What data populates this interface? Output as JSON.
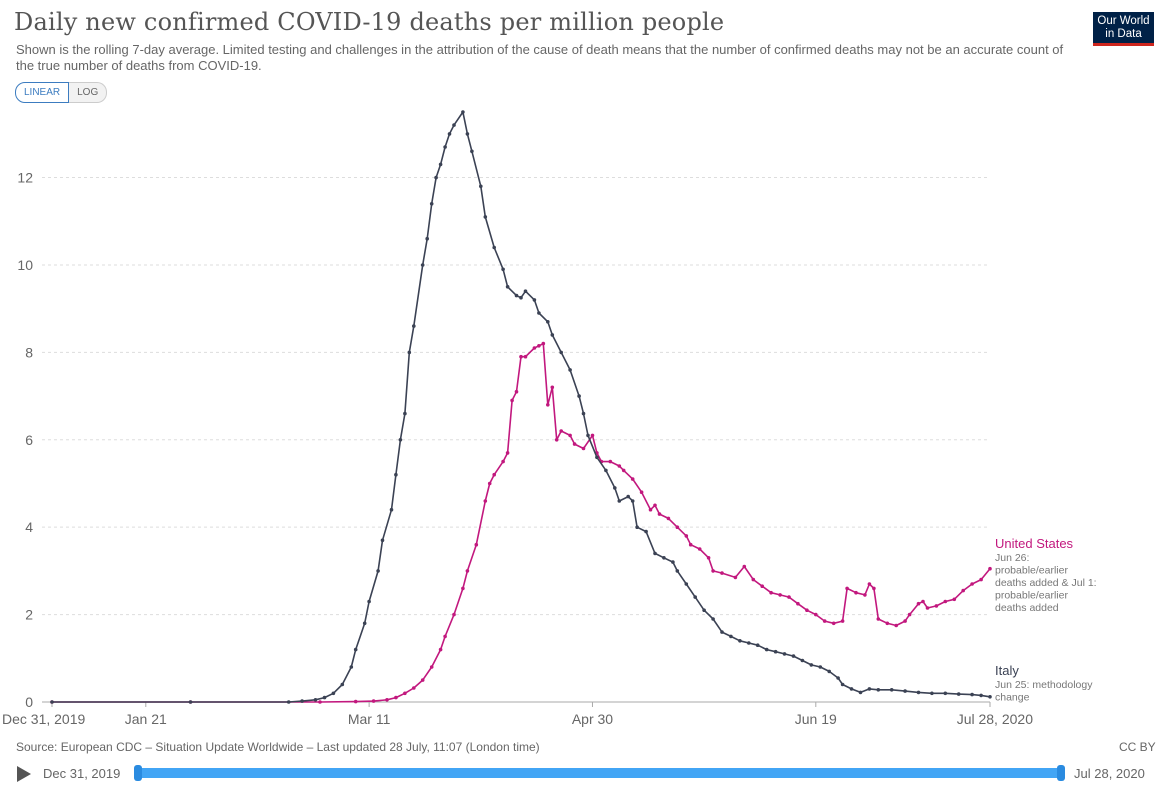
{
  "header": {
    "title": "Daily new confirmed COVID-19 deaths per million people",
    "subtitle": "Shown is the rolling 7-day average. Limited testing and challenges in the attribution of the cause of death means that the number of confirmed deaths may not be an accurate count of the true number of deaths from COVID-19.",
    "logo_line1": "Our World",
    "logo_line2": "in Data"
  },
  "controls": {
    "linear_label": "LINEAR",
    "log_label": "LOG",
    "active": "linear"
  },
  "colors": {
    "united_states": "#c2187e",
    "italy": "#3b4254",
    "grid": "#dddddd",
    "axis": "#aaaaaa"
  },
  "footer": {
    "source": "Source: European CDC – Situation Update Worldwide – Last updated 28 July, 11:07 (London time)",
    "license": "CC BY"
  },
  "timeline": {
    "start_label": "Dec 31, 2019",
    "end_label": "Jul 28, 2020"
  },
  "chart_data": {
    "type": "line",
    "title": "Daily new confirmed COVID-19 deaths per million people",
    "xlabel": "",
    "ylabel": "",
    "x_range": [
      "2019-12-31",
      "2020-07-28"
    ],
    "ylim": [
      0,
      13.5
    ],
    "y_ticks": [
      0,
      2,
      4,
      6,
      8,
      10,
      12
    ],
    "x_ticks": [
      {
        "date": "2019-12-31",
        "label": "Dec 31, 2019"
      },
      {
        "date": "2020-01-21",
        "label": "Jan 21"
      },
      {
        "date": "2020-03-11",
        "label": "Mar 11"
      },
      {
        "date": "2020-04-30",
        "label": "Apr 30"
      },
      {
        "date": "2020-06-19",
        "label": "Jun 19"
      },
      {
        "date": "2020-07-28",
        "label": "Jul 28, 2020"
      }
    ],
    "grid": true,
    "y_scale": "linear",
    "series": [
      {
        "name": "United States",
        "annotation": "Jun 26: probable/earlier deaths added & Jul 1: probable/earlier deaths added",
        "color": "#c2187e",
        "points": [
          [
            "2019-12-31",
            0
          ],
          [
            "2020-01-31",
            0
          ],
          [
            "2020-02-29",
            0
          ],
          [
            "2020-03-08",
            0.01
          ],
          [
            "2020-03-12",
            0.02
          ],
          [
            "2020-03-15",
            0.05
          ],
          [
            "2020-03-17",
            0.1
          ],
          [
            "2020-03-19",
            0.2
          ],
          [
            "2020-03-21",
            0.32
          ],
          [
            "2020-03-23",
            0.5
          ],
          [
            "2020-03-25",
            0.8
          ],
          [
            "2020-03-27",
            1.2
          ],
          [
            "2020-03-28",
            1.5
          ],
          [
            "2020-03-30",
            2.0
          ],
          [
            "2020-04-01",
            2.6
          ],
          [
            "2020-04-02",
            3.0
          ],
          [
            "2020-04-04",
            3.6
          ],
          [
            "2020-04-06",
            4.6
          ],
          [
            "2020-04-07",
            5.0
          ],
          [
            "2020-04-08",
            5.2
          ],
          [
            "2020-04-10",
            5.5
          ],
          [
            "2020-04-11",
            5.7
          ],
          [
            "2020-04-12",
            6.9
          ],
          [
            "2020-04-13",
            7.1
          ],
          [
            "2020-04-14",
            7.9
          ],
          [
            "2020-04-15",
            7.9
          ],
          [
            "2020-04-17",
            8.1
          ],
          [
            "2020-04-18",
            8.15
          ],
          [
            "2020-04-19",
            8.2
          ],
          [
            "2020-04-20",
            6.8
          ],
          [
            "2020-04-21",
            7.2
          ],
          [
            "2020-04-22",
            6.0
          ],
          [
            "2020-04-23",
            6.2
          ],
          [
            "2020-04-25",
            6.1
          ],
          [
            "2020-04-26",
            5.9
          ],
          [
            "2020-04-28",
            5.8
          ],
          [
            "2020-04-30",
            6.1
          ],
          [
            "2020-05-01",
            5.7
          ],
          [
            "2020-05-02",
            5.5
          ],
          [
            "2020-05-04",
            5.5
          ],
          [
            "2020-05-06",
            5.4
          ],
          [
            "2020-05-07",
            5.3
          ],
          [
            "2020-05-09",
            5.1
          ],
          [
            "2020-05-11",
            4.8
          ],
          [
            "2020-05-13",
            4.4
          ],
          [
            "2020-05-14",
            4.5
          ],
          [
            "2020-05-15",
            4.3
          ],
          [
            "2020-05-17",
            4.2
          ],
          [
            "2020-05-19",
            4.0
          ],
          [
            "2020-05-21",
            3.8
          ],
          [
            "2020-05-22",
            3.6
          ],
          [
            "2020-05-24",
            3.5
          ],
          [
            "2020-05-26",
            3.3
          ],
          [
            "2020-05-27",
            3.0
          ],
          [
            "2020-05-29",
            2.95
          ],
          [
            "2020-06-01",
            2.85
          ],
          [
            "2020-06-03",
            3.1
          ],
          [
            "2020-06-05",
            2.8
          ],
          [
            "2020-06-07",
            2.65
          ],
          [
            "2020-06-09",
            2.5
          ],
          [
            "2020-06-11",
            2.45
          ],
          [
            "2020-06-13",
            2.4
          ],
          [
            "2020-06-15",
            2.25
          ],
          [
            "2020-06-17",
            2.1
          ],
          [
            "2020-06-19",
            2.0
          ],
          [
            "2020-06-21",
            1.85
          ],
          [
            "2020-06-23",
            1.8
          ],
          [
            "2020-06-25",
            1.85
          ],
          [
            "2020-06-26",
            2.6
          ],
          [
            "2020-06-28",
            2.5
          ],
          [
            "2020-06-30",
            2.45
          ],
          [
            "2020-07-01",
            2.7
          ],
          [
            "2020-07-02",
            2.6
          ],
          [
            "2020-07-03",
            1.9
          ],
          [
            "2020-07-05",
            1.8
          ],
          [
            "2020-07-07",
            1.75
          ],
          [
            "2020-07-09",
            1.85
          ],
          [
            "2020-07-10",
            2.0
          ],
          [
            "2020-07-12",
            2.25
          ],
          [
            "2020-07-13",
            2.3
          ],
          [
            "2020-07-14",
            2.15
          ],
          [
            "2020-07-16",
            2.2
          ],
          [
            "2020-07-18",
            2.3
          ],
          [
            "2020-07-20",
            2.35
          ],
          [
            "2020-07-22",
            2.55
          ],
          [
            "2020-07-24",
            2.7
          ],
          [
            "2020-07-26",
            2.8
          ],
          [
            "2020-07-28",
            3.05
          ]
        ]
      },
      {
        "name": "Italy",
        "annotation": "Jun 25: methodology change",
        "color": "#3b4254",
        "points": [
          [
            "2019-12-31",
            0
          ],
          [
            "2020-01-31",
            0
          ],
          [
            "2020-02-22",
            0
          ],
          [
            "2020-02-25",
            0.02
          ],
          [
            "2020-02-28",
            0.05
          ],
          [
            "2020-03-01",
            0.1
          ],
          [
            "2020-03-03",
            0.2
          ],
          [
            "2020-03-05",
            0.4
          ],
          [
            "2020-03-07",
            0.8
          ],
          [
            "2020-03-08",
            1.2
          ],
          [
            "2020-03-10",
            1.8
          ],
          [
            "2020-03-11",
            2.3
          ],
          [
            "2020-03-13",
            3.0
          ],
          [
            "2020-03-14",
            3.7
          ],
          [
            "2020-03-16",
            4.4
          ],
          [
            "2020-03-17",
            5.2
          ],
          [
            "2020-03-18",
            6.0
          ],
          [
            "2020-03-19",
            6.6
          ],
          [
            "2020-03-20",
            8.0
          ],
          [
            "2020-03-21",
            8.6
          ],
          [
            "2020-03-23",
            10.0
          ],
          [
            "2020-03-24",
            10.6
          ],
          [
            "2020-03-25",
            11.4
          ],
          [
            "2020-03-26",
            12.0
          ],
          [
            "2020-03-27",
            12.3
          ],
          [
            "2020-03-28",
            12.7
          ],
          [
            "2020-03-29",
            13.0
          ],
          [
            "2020-03-30",
            13.2
          ],
          [
            "2020-04-01",
            13.5
          ],
          [
            "2020-04-02",
            13.0
          ],
          [
            "2020-04-03",
            12.6
          ],
          [
            "2020-04-05",
            11.8
          ],
          [
            "2020-04-06",
            11.1
          ],
          [
            "2020-04-08",
            10.4
          ],
          [
            "2020-04-10",
            9.9
          ],
          [
            "2020-04-11",
            9.5
          ],
          [
            "2020-04-13",
            9.3
          ],
          [
            "2020-04-14",
            9.25
          ],
          [
            "2020-04-15",
            9.4
          ],
          [
            "2020-04-17",
            9.2
          ],
          [
            "2020-04-18",
            8.9
          ],
          [
            "2020-04-20",
            8.7
          ],
          [
            "2020-04-21",
            8.4
          ],
          [
            "2020-04-23",
            8.0
          ],
          [
            "2020-04-25",
            7.6
          ],
          [
            "2020-04-27",
            7.0
          ],
          [
            "2020-04-28",
            6.6
          ],
          [
            "2020-04-29",
            6.1
          ],
          [
            "2020-05-01",
            5.6
          ],
          [
            "2020-05-03",
            5.3
          ],
          [
            "2020-05-05",
            4.9
          ],
          [
            "2020-05-06",
            4.6
          ],
          [
            "2020-05-08",
            4.7
          ],
          [
            "2020-05-09",
            4.6
          ],
          [
            "2020-05-10",
            4.0
          ],
          [
            "2020-05-12",
            3.9
          ],
          [
            "2020-05-14",
            3.4
          ],
          [
            "2020-05-16",
            3.3
          ],
          [
            "2020-05-18",
            3.2
          ],
          [
            "2020-05-19",
            3.0
          ],
          [
            "2020-05-21",
            2.7
          ],
          [
            "2020-05-23",
            2.4
          ],
          [
            "2020-05-25",
            2.1
          ],
          [
            "2020-05-27",
            1.9
          ],
          [
            "2020-05-29",
            1.6
          ],
          [
            "2020-05-31",
            1.5
          ],
          [
            "2020-06-02",
            1.4
          ],
          [
            "2020-06-04",
            1.35
          ],
          [
            "2020-06-06",
            1.3
          ],
          [
            "2020-06-08",
            1.2
          ],
          [
            "2020-06-10",
            1.15
          ],
          [
            "2020-06-12",
            1.1
          ],
          [
            "2020-06-14",
            1.05
          ],
          [
            "2020-06-16",
            0.95
          ],
          [
            "2020-06-18",
            0.85
          ],
          [
            "2020-06-20",
            0.8
          ],
          [
            "2020-06-22",
            0.7
          ],
          [
            "2020-06-24",
            0.55
          ],
          [
            "2020-06-25",
            0.4
          ],
          [
            "2020-06-27",
            0.3
          ],
          [
            "2020-06-29",
            0.22
          ],
          [
            "2020-07-01",
            0.3
          ],
          [
            "2020-07-03",
            0.28
          ],
          [
            "2020-07-06",
            0.28
          ],
          [
            "2020-07-09",
            0.25
          ],
          [
            "2020-07-12",
            0.22
          ],
          [
            "2020-07-15",
            0.2
          ],
          [
            "2020-07-18",
            0.2
          ],
          [
            "2020-07-21",
            0.18
          ],
          [
            "2020-07-24",
            0.17
          ],
          [
            "2020-07-26",
            0.15
          ],
          [
            "2020-07-28",
            0.12
          ]
        ]
      }
    ]
  }
}
